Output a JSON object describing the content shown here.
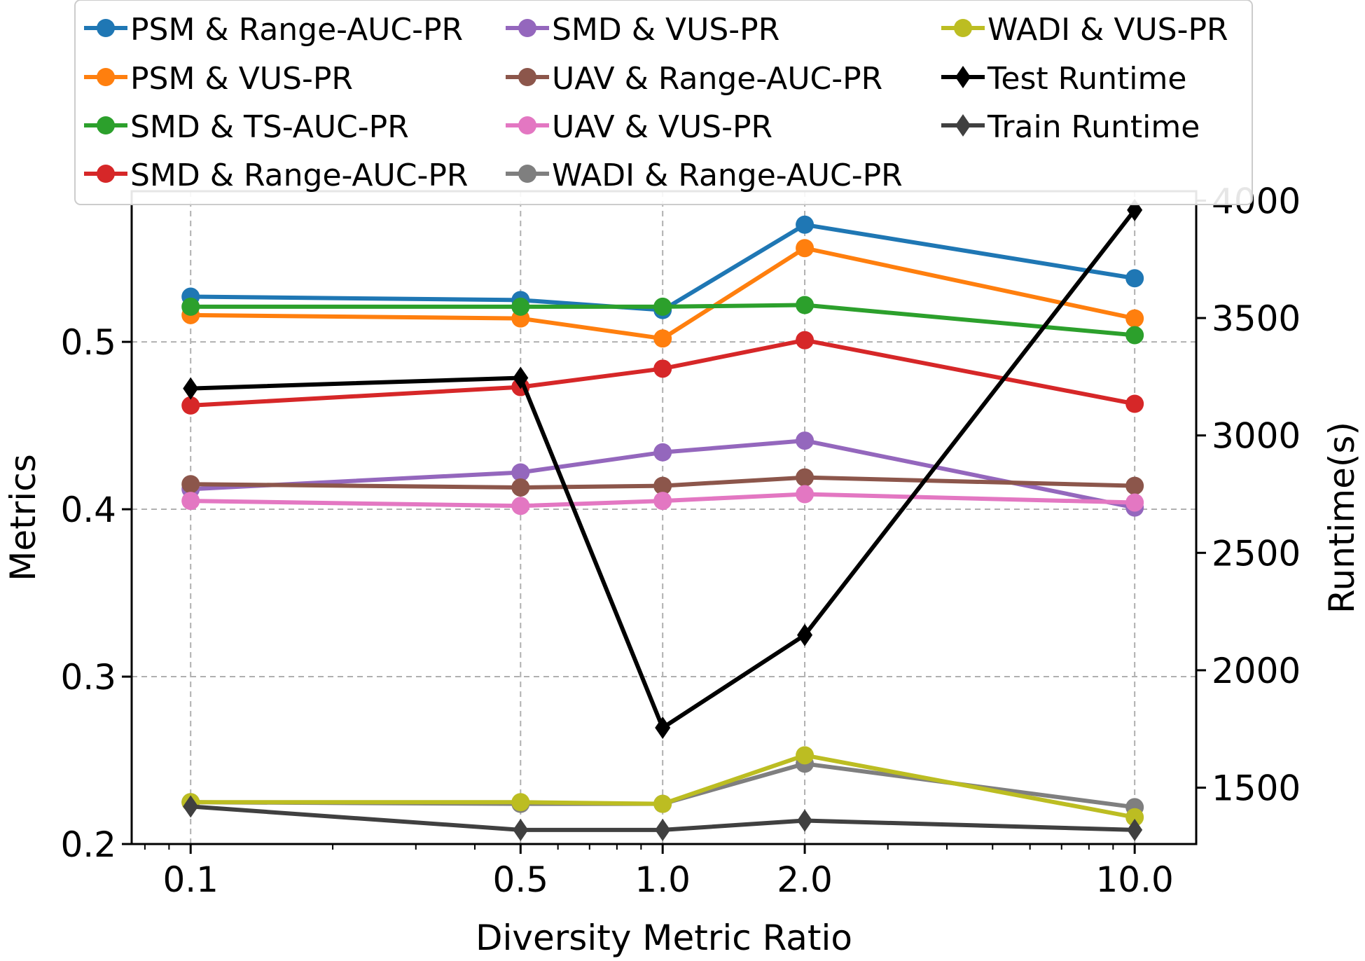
{
  "chart_data": {
    "type": "line",
    "xscale": "log",
    "x": [
      0.1,
      0.5,
      1.0,
      2.0,
      10.0
    ],
    "x_tick_labels": [
      "0.1",
      "0.5",
      "1.0",
      "2.0",
      "10.0"
    ],
    "xlabel": "Diversity Metric Ratio",
    "ylabel": "Metrics",
    "y2label": "Runtime(s)",
    "xlim": [
      0.075,
      13.5
    ],
    "ylim": [
      0.2,
      0.59
    ],
    "y2lim": [
      1260,
      4040
    ],
    "y_ticks": [
      0.2,
      0.3,
      0.4,
      0.5
    ],
    "y_tick_labels": [
      "0.2",
      "0.3",
      "0.4",
      "0.5"
    ],
    "y2_ticks": [
      1500,
      2000,
      2500,
      3000,
      3500,
      4000
    ],
    "y2_tick_labels": [
      "1500",
      "2000",
      "2500",
      "3000",
      "3500",
      "4000"
    ],
    "grid": true,
    "legend_position": "top",
    "series": [
      {
        "name": "PSM & Range-AUC-PR",
        "axis": "left",
        "marker": "circle",
        "color": "#1f77b4",
        "values": [
          0.527,
          0.525,
          0.519,
          0.57,
          0.538
        ]
      },
      {
        "name": "PSM & VUS-PR",
        "axis": "left",
        "marker": "circle",
        "color": "#ff7f0e",
        "values": [
          0.516,
          0.514,
          0.502,
          0.556,
          0.514
        ]
      },
      {
        "name": "SMD & TS-AUC-PR",
        "axis": "left",
        "marker": "circle",
        "color": "#2ca02c",
        "values": [
          0.521,
          0.521,
          0.521,
          0.522,
          0.504
        ]
      },
      {
        "name": "SMD & Range-AUC-PR",
        "axis": "left",
        "marker": "circle",
        "color": "#d62728",
        "values": [
          0.462,
          0.473,
          0.484,
          0.501,
          0.463
        ]
      },
      {
        "name": "SMD & VUS-PR",
        "axis": "left",
        "marker": "circle",
        "color": "#9467bd",
        "values": [
          0.412,
          0.422,
          0.434,
          0.441,
          0.401
        ]
      },
      {
        "name": "UAV & Range-AUC-PR",
        "axis": "left",
        "marker": "circle",
        "color": "#8c564b",
        "values": [
          0.415,
          0.413,
          0.414,
          0.419,
          0.414
        ]
      },
      {
        "name": "UAV & VUS-PR",
        "axis": "left",
        "marker": "circle",
        "color": "#e377c2",
        "values": [
          0.405,
          0.402,
          0.405,
          0.409,
          0.404
        ]
      },
      {
        "name": "WADI & Range-AUC-PR",
        "axis": "left",
        "marker": "circle",
        "color": "#7f7f7f",
        "values": [
          0.225,
          0.224,
          0.224,
          0.248,
          0.222
        ]
      },
      {
        "name": "WADI & VUS-PR",
        "axis": "left",
        "marker": "circle",
        "color": "#bcbd22",
        "values": [
          0.225,
          0.225,
          0.224,
          0.253,
          0.216
        ]
      },
      {
        "name": "Test Runtime",
        "axis": "right",
        "marker": "diamond",
        "color": "#000000",
        "values": [
          3200,
          3245,
          1755,
          2150,
          3960
        ]
      },
      {
        "name": "Train Runtime",
        "axis": "right",
        "marker": "diamond",
        "color": "#404040",
        "values": [
          1420,
          1320,
          1320,
          1360,
          1320
        ]
      }
    ]
  }
}
